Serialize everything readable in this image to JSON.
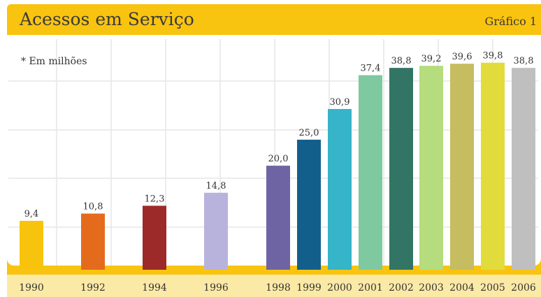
{
  "header": {
    "title": "Acessos em Serviço",
    "chart_number": "Gráfico 1"
  },
  "note": "* Em milhões",
  "chart_data": {
    "type": "bar",
    "title": "Acessos em Serviço",
    "unit_note": "* Em milhões",
    "categories": [
      "1990",
      "1992",
      "1994",
      "1996",
      "1998",
      "1999",
      "2000",
      "2001",
      "2002",
      "2003",
      "2004",
      "2005",
      "2006"
    ],
    "values": [
      9.4,
      10.8,
      12.3,
      14.8,
      20.0,
      25.0,
      30.9,
      37.4,
      38.8,
      39.2,
      39.6,
      39.8,
      38.8
    ],
    "value_labels": [
      "9,4",
      "10,8",
      "12,3",
      "14,8",
      "20,0",
      "25,0",
      "30,9",
      "37,4",
      "38,8",
      "39,2",
      "39,6",
      "39,8",
      "38,8"
    ],
    "colors": [
      "#f8c30d",
      "#e46b1c",
      "#9c2a28",
      "#b8b3dc",
      "#6f64a3",
      "#135f8c",
      "#36b4c8",
      "#7ec9a0",
      "#337565",
      "#b5dc7d",
      "#c6bc60",
      "#e2db3c",
      "#bfbfbf"
    ],
    "xlabel": "",
    "ylabel": "",
    "ylim": [
      0,
      45
    ],
    "grid": true,
    "legend": "none"
  }
}
